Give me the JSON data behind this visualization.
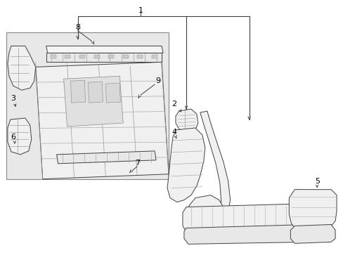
{
  "bg_color": "#ffffff",
  "line_color": "#404040",
  "light_gray": "#d0d0d0",
  "mid_gray": "#a0a0a0",
  "part_fill": "#f8f8f8",
  "inset_fill": "#e8e8e8",
  "fig_width": 4.89,
  "fig_height": 3.6,
  "dpi": 100,
  "label_fs": 8,
  "lw": 0.7
}
